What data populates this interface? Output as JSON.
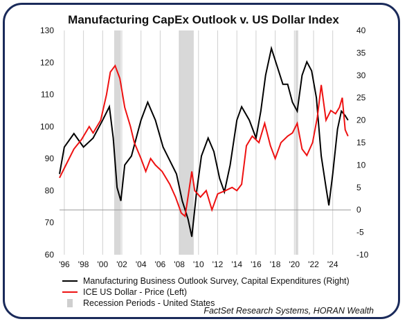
{
  "chart_data": {
    "type": "line",
    "title": "Manufacturing CapEx Outlook v. US Dollar Index",
    "x_tick_labels": [
      "'96",
      "'98",
      "'00",
      "'02",
      "'04",
      "'06",
      "'08",
      "'10",
      "'12",
      "'14",
      "'16",
      "'18",
      "'20",
      "'22",
      "'24"
    ],
    "x_range": [
      1995.5,
      2025.9
    ],
    "left_axis": {
      "ticks": [
        60,
        70,
        80,
        90,
        100,
        110,
        120,
        130
      ],
      "range": [
        60,
        130
      ]
    },
    "right_axis": {
      "ticks": [
        -10,
        -5,
        0,
        5,
        10,
        15,
        20,
        25,
        30,
        35,
        40
      ],
      "range": [
        -10,
        40
      ]
    },
    "recessions": [
      [
        2001.2,
        2001.9
      ],
      [
        2007.95,
        2009.5
      ],
      [
        2020.1,
        2020.4
      ]
    ],
    "series": [
      {
        "name": "Manufacturing Business Outlook Survey, Capital Expenditures (Right)",
        "axis": "right",
        "color": "#000000",
        "points": [
          [
            1995.5,
            8
          ],
          [
            1996,
            14
          ],
          [
            1997,
            17
          ],
          [
            1998,
            14
          ],
          [
            1999,
            16
          ],
          [
            2000,
            20
          ],
          [
            2000.7,
            23
          ],
          [
            2001.1,
            16
          ],
          [
            2001.5,
            5
          ],
          [
            2001.9,
            2
          ],
          [
            2002.3,
            10
          ],
          [
            2003,
            12
          ],
          [
            2003.5,
            16
          ],
          [
            2004,
            20
          ],
          [
            2004.7,
            24
          ],
          [
            2005.5,
            20
          ],
          [
            2006.3,
            14
          ],
          [
            2007,
            11
          ],
          [
            2007.7,
            8
          ],
          [
            2008.3,
            2
          ],
          [
            2008.9,
            -2
          ],
          [
            2009.3,
            -6
          ],
          [
            2009.8,
            4
          ],
          [
            2010.3,
            12
          ],
          [
            2011,
            16
          ],
          [
            2011.6,
            13
          ],
          [
            2012.2,
            7
          ],
          [
            2012.7,
            4
          ],
          [
            2013.3,
            10
          ],
          [
            2014,
            20
          ],
          [
            2014.5,
            23
          ],
          [
            2015.3,
            20
          ],
          [
            2016,
            16
          ],
          [
            2016.5,
            22
          ],
          [
            2017,
            30
          ],
          [
            2017.6,
            36
          ],
          [
            2018.2,
            32
          ],
          [
            2018.8,
            28
          ],
          [
            2019.3,
            28
          ],
          [
            2019.8,
            24
          ],
          [
            2020.3,
            22
          ],
          [
            2020.8,
            30
          ],
          [
            2021.3,
            33
          ],
          [
            2021.8,
            31
          ],
          [
            2022.3,
            25
          ],
          [
            2022.8,
            12
          ],
          [
            2023.3,
            5
          ],
          [
            2023.6,
            1
          ],
          [
            2024,
            8
          ],
          [
            2024.5,
            18
          ],
          [
            2024.9,
            22
          ],
          [
            2025.3,
            21
          ],
          [
            2025.6,
            20
          ]
        ]
      },
      {
        "name": "ICE US Dollar - Price (Left)",
        "axis": "left",
        "color": "#ee1111",
        "points": [
          [
            1995.5,
            84
          ],
          [
            1996,
            87
          ],
          [
            1997,
            93
          ],
          [
            1997.8,
            96
          ],
          [
            1998.6,
            100
          ],
          [
            1999,
            98
          ],
          [
            1999.8,
            102
          ],
          [
            2000.4,
            110
          ],
          [
            2000.8,
            117
          ],
          [
            2001.3,
            119
          ],
          [
            2001.8,
            115
          ],
          [
            2002.3,
            106
          ],
          [
            2002.9,
            100
          ],
          [
            2003.3,
            95
          ],
          [
            2004,
            90
          ],
          [
            2004.5,
            86
          ],
          [
            2005,
            90
          ],
          [
            2005.5,
            88
          ],
          [
            2006.2,
            86
          ],
          [
            2007,
            82
          ],
          [
            2007.6,
            78
          ],
          [
            2008.2,
            73
          ],
          [
            2008.6,
            72
          ],
          [
            2009,
            80
          ],
          [
            2009.3,
            86
          ],
          [
            2009.6,
            80
          ],
          [
            2010.2,
            78
          ],
          [
            2010.8,
            80
          ],
          [
            2011.4,
            74
          ],
          [
            2012,
            79
          ],
          [
            2012.8,
            80
          ],
          [
            2013.5,
            81
          ],
          [
            2014,
            80
          ],
          [
            2014.5,
            82
          ],
          [
            2015,
            94
          ],
          [
            2015.6,
            97
          ],
          [
            2016.3,
            95
          ],
          [
            2016.9,
            101
          ],
          [
            2017.5,
            94
          ],
          [
            2018,
            90
          ],
          [
            2018.6,
            95
          ],
          [
            2019.3,
            97
          ],
          [
            2019.8,
            98
          ],
          [
            2020.3,
            101
          ],
          [
            2020.8,
            93
          ],
          [
            2021.3,
            91
          ],
          [
            2021.9,
            95
          ],
          [
            2022.4,
            103
          ],
          [
            2022.8,
            113
          ],
          [
            2023.3,
            102
          ],
          [
            2023.8,
            105
          ],
          [
            2024.3,
            104
          ],
          [
            2024.7,
            106
          ],
          [
            2025,
            109
          ],
          [
            2025.3,
            99
          ],
          [
            2025.6,
            97
          ]
        ]
      }
    ]
  },
  "legend": {
    "capex": "Manufacturing Business Outlook Survey, Capital Expenditures (Right)",
    "dollar": "ICE US Dollar - Price (Left)",
    "recession": "Recession Periods - United States"
  },
  "source": "FactSet Research Systems, HORAN Wealth",
  "colors": {
    "frame": "#1a2a5a",
    "capex": "#000000",
    "dollar": "#ee1111",
    "recession": "#d8d8d8",
    "grid": "#d0d0d0"
  }
}
